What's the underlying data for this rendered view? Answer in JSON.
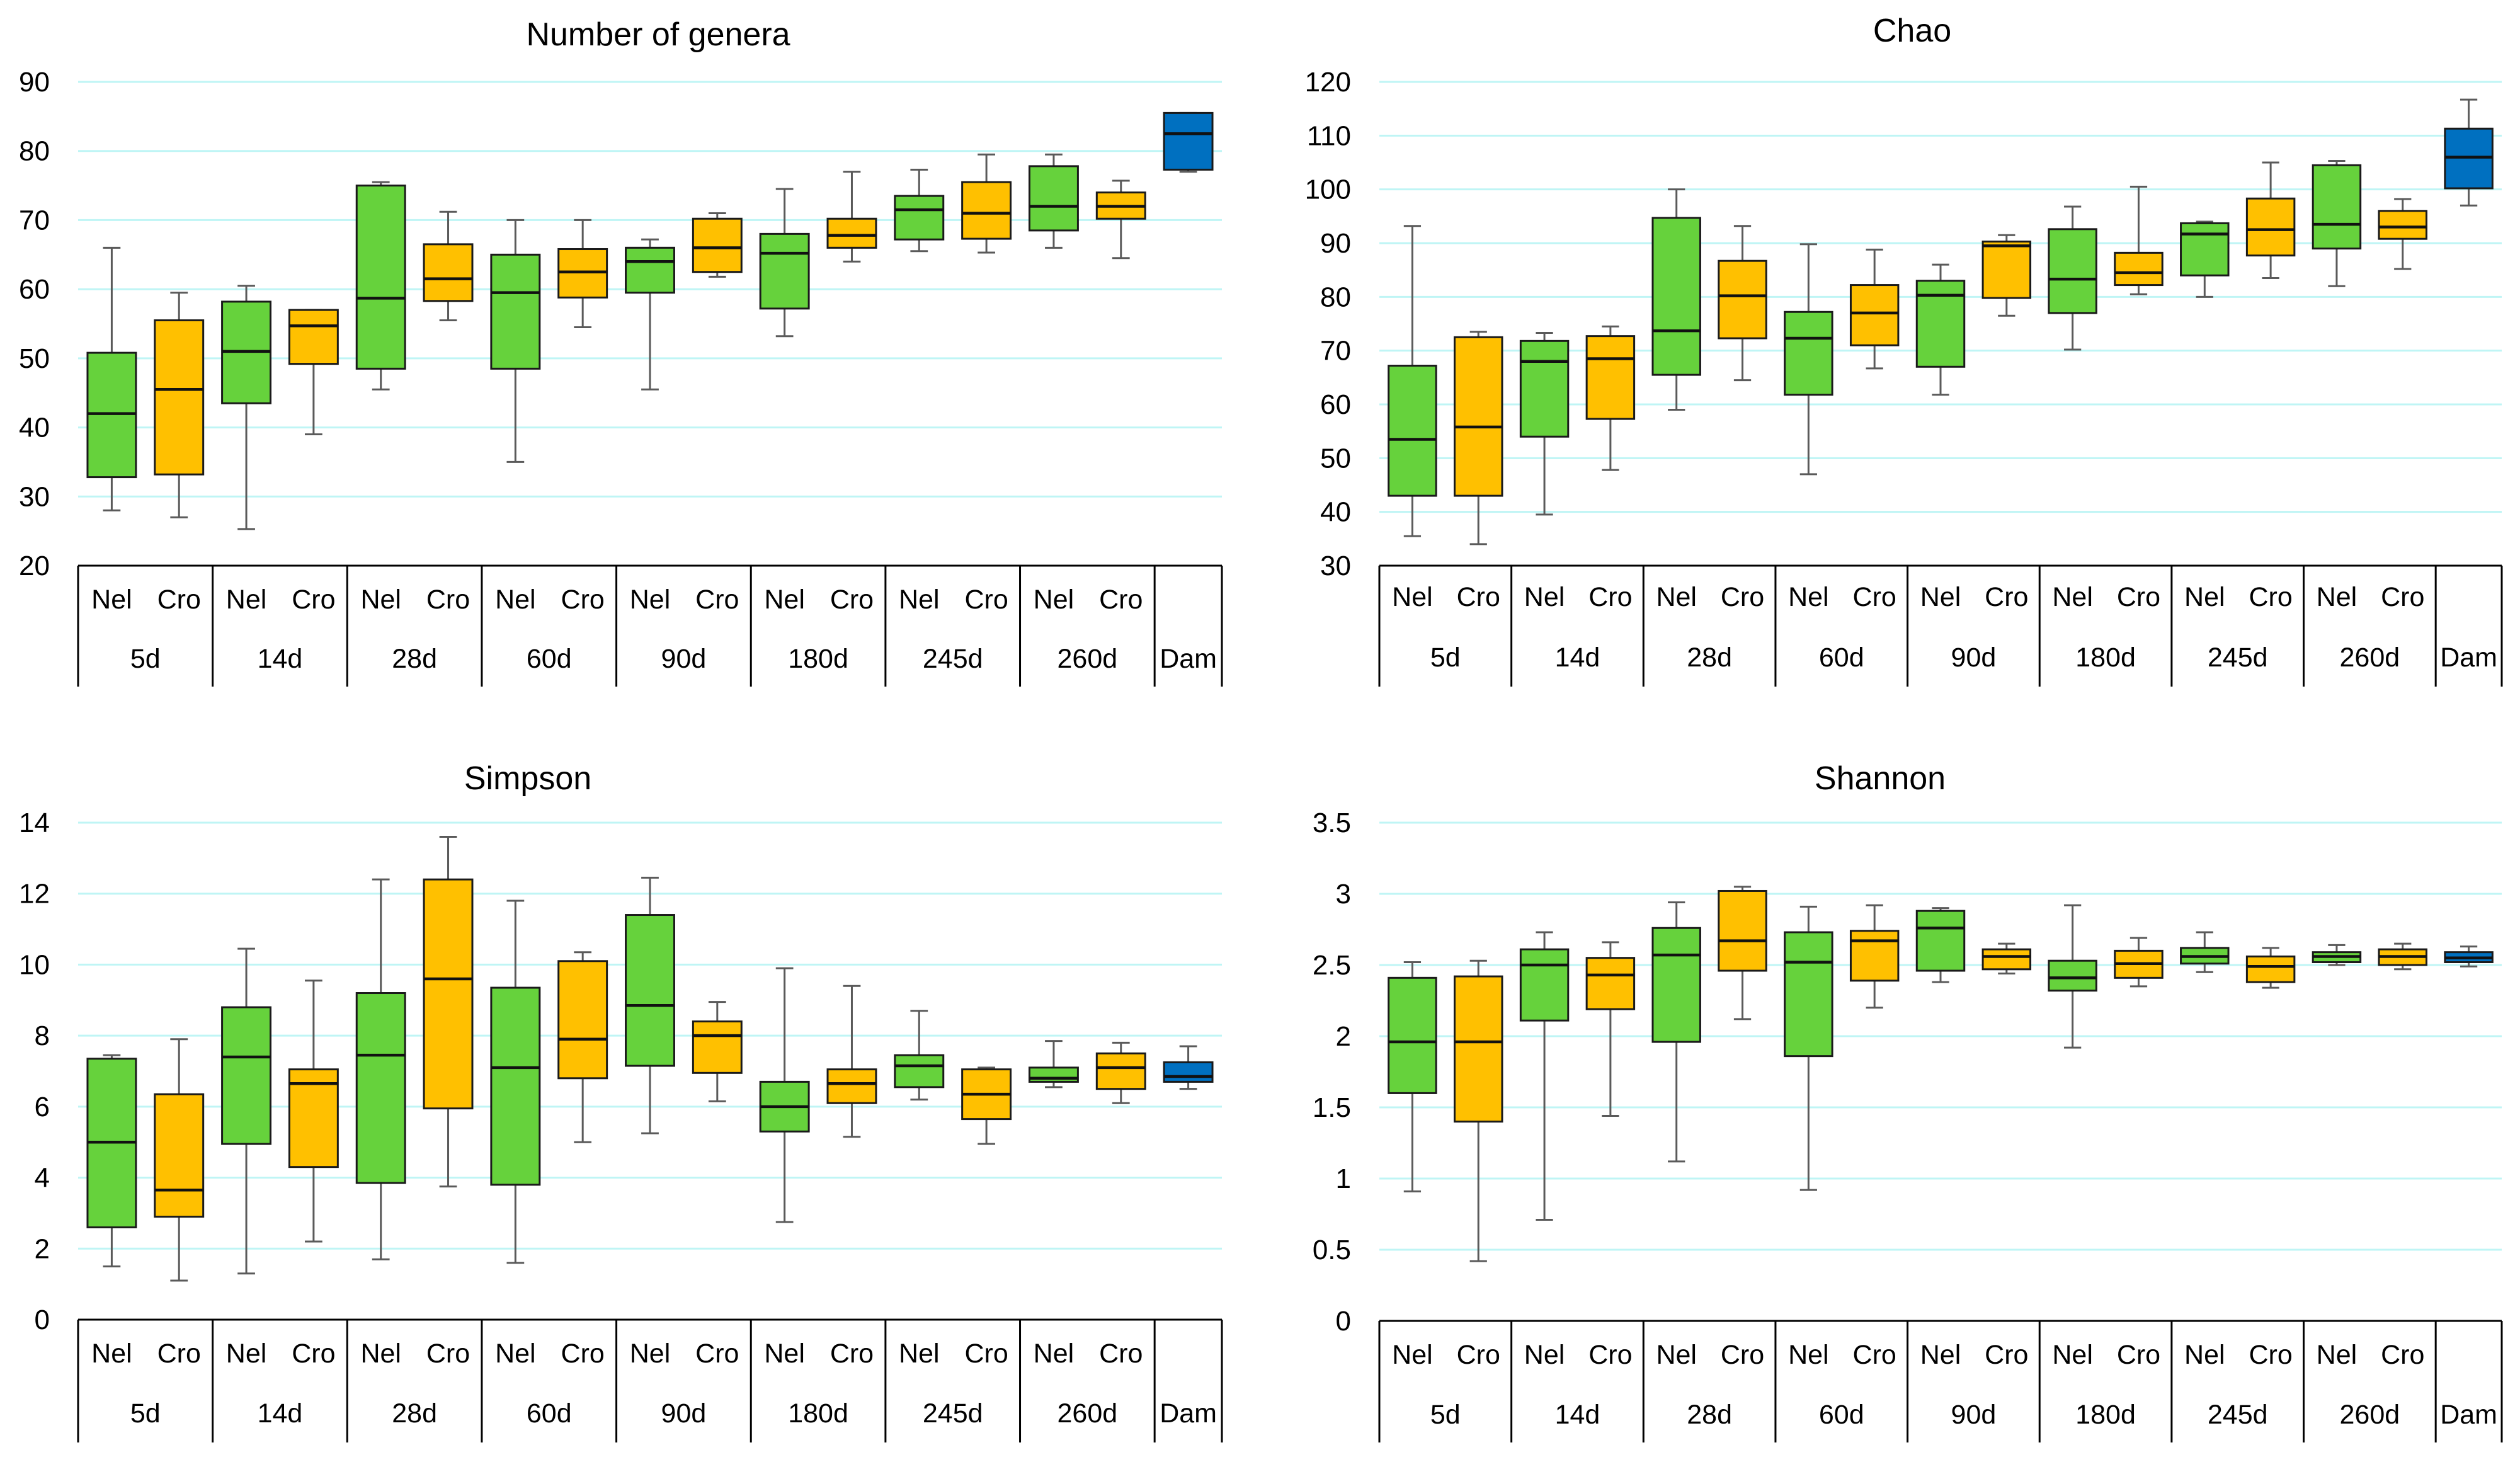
{
  "colors": {
    "Nel": "#66d23c",
    "Cro": "#ffc000",
    "Dam": "#0070c0"
  },
  "chart_data": [
    {
      "type": "boxplot",
      "title": "Number of genera",
      "ylim": [
        20,
        90
      ],
      "yticks": [
        20,
        30,
        40,
        50,
        60,
        70,
        80,
        90
      ],
      "subcategories": [
        "Nel",
        "Cro",
        "Nel",
        "Cro",
        "Nel",
        "Cro",
        "Nel",
        "Cro",
        "Nel",
        "Cro",
        "Nel",
        "Cro",
        "Nel",
        "Cro",
        "Nel",
        "Cro",
        ""
      ],
      "groups": [
        "5d",
        "14d",
        "28d",
        "60d",
        "90d",
        "180d",
        "245d",
        "260d",
        "Dam"
      ],
      "boxes": [
        {
          "group": "5d",
          "breed": "Nel",
          "min": 28,
          "q1": 32.8,
          "median": 42,
          "q3": 50.8,
          "max": 66
        },
        {
          "group": "5d",
          "breed": "Cro",
          "min": 27,
          "q1": 33.2,
          "median": 45.5,
          "q3": 55.5,
          "max": 59.5
        },
        {
          "group": "14d",
          "breed": "Nel",
          "min": 25.3,
          "q1": 43.5,
          "median": 51,
          "q3": 58.2,
          "max": 60.5
        },
        {
          "group": "14d",
          "breed": "Cro",
          "min": 39,
          "q1": 49.2,
          "median": 54.7,
          "q3": 57,
          "max": 57
        },
        {
          "group": "28d",
          "breed": "Nel",
          "min": 45.5,
          "q1": 48.5,
          "median": 58.7,
          "q3": 75,
          "max": 75.5
        },
        {
          "group": "28d",
          "breed": "Cro",
          "min": 55.5,
          "q1": 58.3,
          "median": 61.5,
          "q3": 66.5,
          "max": 71.2
        },
        {
          "group": "60d",
          "breed": "Nel",
          "min": 35,
          "q1": 48.5,
          "median": 59.5,
          "q3": 65,
          "max": 70
        },
        {
          "group": "60d",
          "breed": "Cro",
          "min": 54.5,
          "q1": 58.8,
          "median": 62.5,
          "q3": 65.8,
          "max": 70
        },
        {
          "group": "90d",
          "breed": "Nel",
          "min": 45.5,
          "q1": 59.5,
          "median": 64,
          "q3": 66,
          "max": 67.2
        },
        {
          "group": "90d",
          "breed": "Cro",
          "min": 61.8,
          "q1": 62.5,
          "median": 66,
          "q3": 70.2,
          "max": 71
        },
        {
          "group": "180d",
          "breed": "Nel",
          "min": 53.2,
          "q1": 57.2,
          "median": 65.2,
          "q3": 68,
          "max": 74.5
        },
        {
          "group": "180d",
          "breed": "Cro",
          "min": 64,
          "q1": 66,
          "median": 67.8,
          "q3": 70.2,
          "max": 77
        },
        {
          "group": "245d",
          "breed": "Nel",
          "min": 65.5,
          "q1": 67.2,
          "median": 71.5,
          "q3": 73.5,
          "max": 77.3
        },
        {
          "group": "245d",
          "breed": "Cro",
          "min": 65.3,
          "q1": 67.3,
          "median": 71,
          "q3": 75.5,
          "max": 79.5
        },
        {
          "group": "260d",
          "breed": "Nel",
          "min": 66,
          "q1": 68.5,
          "median": 72,
          "q3": 77.8,
          "max": 79.5
        },
        {
          "group": "260d",
          "breed": "Cro",
          "min": 64.5,
          "q1": 70.2,
          "median": 72,
          "q3": 74,
          "max": 75.7
        },
        {
          "group": "Dam",
          "breed": "Dam",
          "min": 77,
          "q1": 77.3,
          "median": 82.5,
          "q3": 85.5,
          "max": 85.5
        }
      ]
    },
    {
      "type": "boxplot",
      "title": "Chao",
      "ylim": [
        30,
        120
      ],
      "yticks": [
        30,
        40,
        50,
        60,
        70,
        80,
        90,
        100,
        110,
        120
      ],
      "subcategories": [
        "Nel",
        "Cro",
        "Nel",
        "Cro",
        "Nel",
        "Cro",
        "Nel",
        "Cro",
        "Nel",
        "Cro",
        "Nel",
        "Cro",
        "Nel",
        "Cro",
        "Nel",
        "Cro",
        ""
      ],
      "groups": [
        "5d",
        "14d",
        "28d",
        "60d",
        "90d",
        "180d",
        "245d",
        "260d",
        "Dam"
      ],
      "boxes": [
        {
          "group": "5d",
          "breed": "Nel",
          "min": 35.5,
          "q1": 43,
          "median": 53.5,
          "q3": 67.2,
          "max": 93.2
        },
        {
          "group": "5d",
          "breed": "Cro",
          "min": 34,
          "q1": 43,
          "median": 55.8,
          "q3": 72.5,
          "max": 73.5
        },
        {
          "group": "14d",
          "breed": "Nel",
          "min": 39.5,
          "q1": 54,
          "median": 68,
          "q3": 71.8,
          "max": 73.3
        },
        {
          "group": "14d",
          "breed": "Cro",
          "min": 47.8,
          "q1": 57.3,
          "median": 68.5,
          "q3": 72.7,
          "max": 74.5
        },
        {
          "group": "28d",
          "breed": "Nel",
          "min": 59,
          "q1": 65.5,
          "median": 73.7,
          "q3": 94.7,
          "max": 100
        },
        {
          "group": "28d",
          "breed": "Cro",
          "min": 64.5,
          "q1": 72.3,
          "median": 80.2,
          "q3": 86.7,
          "max": 93.2
        },
        {
          "group": "60d",
          "breed": "Nel",
          "min": 47,
          "q1": 61.8,
          "median": 72.3,
          "q3": 77.2,
          "max": 89.8
        },
        {
          "group": "60d",
          "breed": "Cro",
          "min": 66.7,
          "q1": 71,
          "median": 77,
          "q3": 82.2,
          "max": 88.8
        },
        {
          "group": "90d",
          "breed": "Nel",
          "min": 61.8,
          "q1": 67,
          "median": 80.3,
          "q3": 83,
          "max": 86
        },
        {
          "group": "90d",
          "breed": "Cro",
          "min": 76.5,
          "q1": 79.8,
          "median": 89.5,
          "q3": 90.3,
          "max": 91.5
        },
        {
          "group": "180d",
          "breed": "Nel",
          "min": 70.2,
          "q1": 77,
          "median": 83.3,
          "q3": 92.6,
          "max": 96.8
        },
        {
          "group": "180d",
          "breed": "Cro",
          "min": 80.5,
          "q1": 82.2,
          "median": 84.5,
          "q3": 88.2,
          "max": 100.5
        },
        {
          "group": "245d",
          "breed": "Nel",
          "min": 80,
          "q1": 84,
          "median": 91.7,
          "q3": 93.7,
          "max": 94
        },
        {
          "group": "245d",
          "breed": "Cro",
          "min": 83.5,
          "q1": 87.7,
          "median": 92.5,
          "q3": 98.3,
          "max": 105
        },
        {
          "group": "260d",
          "breed": "Nel",
          "min": 82,
          "q1": 89,
          "median": 93.5,
          "q3": 104.5,
          "max": 105.3
        },
        {
          "group": "260d",
          "breed": "Cro",
          "min": 85.2,
          "q1": 90.8,
          "median": 93,
          "q3": 96,
          "max": 98.2
        },
        {
          "group": "Dam",
          "breed": "Dam",
          "min": 97,
          "q1": 100.2,
          "median": 106,
          "q3": 111.3,
          "max": 116.7
        }
      ]
    },
    {
      "type": "boxplot",
      "title": "Simpson",
      "ylim": [
        0,
        14
      ],
      "yticks": [
        0,
        2,
        4,
        6,
        8,
        10,
        12,
        14
      ],
      "subcategories": [
        "Nel",
        "Cro",
        "Nel",
        "Cro",
        "Nel",
        "Cro",
        "Nel",
        "Cro",
        "Nel",
        "Cro",
        "Nel",
        "Cro",
        "Nel",
        "Cro",
        "Nel",
        "Cro",
        ""
      ],
      "groups": [
        "5d",
        "14d",
        "28d",
        "60d",
        "90d",
        "180d",
        "245d",
        "260d",
        "Dam"
      ],
      "boxes": [
        {
          "group": "5d",
          "breed": "Nel",
          "min": 1.5,
          "q1": 2.6,
          "median": 5,
          "q3": 7.35,
          "max": 7.45
        },
        {
          "group": "5d",
          "breed": "Cro",
          "min": 1.1,
          "q1": 2.9,
          "median": 3.65,
          "q3": 6.35,
          "max": 7.9
        },
        {
          "group": "14d",
          "breed": "Nel",
          "min": 1.3,
          "q1": 4.95,
          "median": 7.4,
          "q3": 8.8,
          "max": 10.45
        },
        {
          "group": "14d",
          "breed": "Cro",
          "min": 2.2,
          "q1": 4.3,
          "median": 6.65,
          "q3": 7.05,
          "max": 9.55
        },
        {
          "group": "28d",
          "breed": "Nel",
          "min": 1.7,
          "q1": 3.85,
          "median": 7.45,
          "q3": 9.2,
          "max": 12.4
        },
        {
          "group": "28d",
          "breed": "Cro",
          "min": 3.75,
          "q1": 5.95,
          "median": 9.6,
          "q3": 12.4,
          "max": 13.6
        },
        {
          "group": "60d",
          "breed": "Nel",
          "min": 1.6,
          "q1": 3.8,
          "median": 7.1,
          "q3": 9.35,
          "max": 11.8
        },
        {
          "group": "60d",
          "breed": "Cro",
          "min": 5,
          "q1": 6.8,
          "median": 7.9,
          "q3": 10.1,
          "max": 10.35
        },
        {
          "group": "90d",
          "breed": "Nel",
          "min": 5.25,
          "q1": 7.15,
          "median": 8.85,
          "q3": 11.4,
          "max": 12.45
        },
        {
          "group": "90d",
          "breed": "Cro",
          "min": 6.15,
          "q1": 6.95,
          "median": 8,
          "q3": 8.4,
          "max": 8.95
        },
        {
          "group": "180d",
          "breed": "Nel",
          "min": 2.75,
          "q1": 5.3,
          "median": 6,
          "q3": 6.7,
          "max": 9.9
        },
        {
          "group": "180d",
          "breed": "Cro",
          "min": 5.15,
          "q1": 6.1,
          "median": 6.65,
          "q3": 7.05,
          "max": 9.4
        },
        {
          "group": "245d",
          "breed": "Nel",
          "min": 6.2,
          "q1": 6.55,
          "median": 7.15,
          "q3": 7.45,
          "max": 8.7
        },
        {
          "group": "245d",
          "breed": "Cro",
          "min": 4.95,
          "q1": 5.65,
          "median": 6.35,
          "q3": 7.05,
          "max": 7.1
        },
        {
          "group": "260d",
          "breed": "Nel",
          "min": 6.55,
          "q1": 6.7,
          "median": 6.8,
          "q3": 7.1,
          "max": 7.85
        },
        {
          "group": "260d",
          "breed": "Cro",
          "min": 6.1,
          "q1": 6.5,
          "median": 7.1,
          "q3": 7.5,
          "max": 7.8
        },
        {
          "group": "Dam",
          "breed": "Dam",
          "min": 6.5,
          "q1": 6.7,
          "median": 6.85,
          "q3": 7.25,
          "max": 7.7
        }
      ]
    },
    {
      "type": "boxplot",
      "title": "Shannon",
      "ylim": [
        0,
        3.5
      ],
      "yticks": [
        "0",
        "0.5",
        "1",
        "1.5",
        "2",
        "2.5",
        "3",
        "3.5"
      ],
      "subcategories": [
        "Nel",
        "Cro",
        "Nel",
        "Cro",
        "Nel",
        "Cro",
        "Nel",
        "Cro",
        "Nel",
        "Cro",
        "Nel",
        "Cro",
        "Nel",
        "Cro",
        "Nel",
        "Cro",
        ""
      ],
      "groups": [
        "5d",
        "14d",
        "28d",
        "60d",
        "90d",
        "180d",
        "245d",
        "260d",
        "Dam"
      ],
      "boxes": [
        {
          "group": "5d",
          "breed": "Nel",
          "min": 0.91,
          "q1": 1.6,
          "median": 1.96,
          "q3": 2.41,
          "max": 2.52
        },
        {
          "group": "5d",
          "breed": "Cro",
          "min": 0.42,
          "q1": 1.4,
          "median": 1.96,
          "q3": 2.42,
          "max": 2.53
        },
        {
          "group": "14d",
          "breed": "Nel",
          "min": 0.71,
          "q1": 2.11,
          "median": 2.5,
          "q3": 2.61,
          "max": 2.73
        },
        {
          "group": "14d",
          "breed": "Cro",
          "min": 1.44,
          "q1": 2.19,
          "median": 2.43,
          "q3": 2.55,
          "max": 2.66
        },
        {
          "group": "28d",
          "breed": "Nel",
          "min": 1.12,
          "q1": 1.96,
          "median": 2.57,
          "q3": 2.76,
          "max": 2.94
        },
        {
          "group": "28d",
          "breed": "Cro",
          "min": 2.12,
          "q1": 2.46,
          "median": 2.67,
          "q3": 3.02,
          "max": 3.05
        },
        {
          "group": "60d",
          "breed": "Nel",
          "min": 0.92,
          "q1": 1.86,
          "median": 2.52,
          "q3": 2.73,
          "max": 2.91
        },
        {
          "group": "60d",
          "breed": "Cro",
          "min": 2.2,
          "q1": 2.39,
          "median": 2.67,
          "q3": 2.74,
          "max": 2.92
        },
        {
          "group": "90d",
          "breed": "Nel",
          "min": 2.38,
          "q1": 2.46,
          "median": 2.76,
          "q3": 2.88,
          "max": 2.9
        },
        {
          "group": "90d",
          "breed": "Cro",
          "min": 2.44,
          "q1": 2.47,
          "median": 2.56,
          "q3": 2.61,
          "max": 2.65
        },
        {
          "group": "180d",
          "breed": "Nel",
          "min": 1.92,
          "q1": 2.32,
          "median": 2.41,
          "q3": 2.53,
          "max": 2.92
        },
        {
          "group": "180d",
          "breed": "Cro",
          "min": 2.35,
          "q1": 2.41,
          "median": 2.51,
          "q3": 2.6,
          "max": 2.69
        },
        {
          "group": "245d",
          "breed": "Nel",
          "min": 2.45,
          "q1": 2.51,
          "median": 2.56,
          "q3": 2.62,
          "max": 2.73
        },
        {
          "group": "245d",
          "breed": "Cro",
          "min": 2.34,
          "q1": 2.38,
          "median": 2.49,
          "q3": 2.56,
          "max": 2.62
        },
        {
          "group": "260d",
          "breed": "Nel",
          "min": 2.5,
          "q1": 2.52,
          "median": 2.56,
          "q3": 2.59,
          "max": 2.64
        },
        {
          "group": "260d",
          "breed": "Cro",
          "min": 2.47,
          "q1": 2.5,
          "median": 2.56,
          "q3": 2.61,
          "max": 2.65
        },
        {
          "group": "Dam",
          "breed": "Dam",
          "min": 2.49,
          "q1": 2.52,
          "median": 2.55,
          "q3": 2.59,
          "max": 2.63
        }
      ]
    }
  ]
}
